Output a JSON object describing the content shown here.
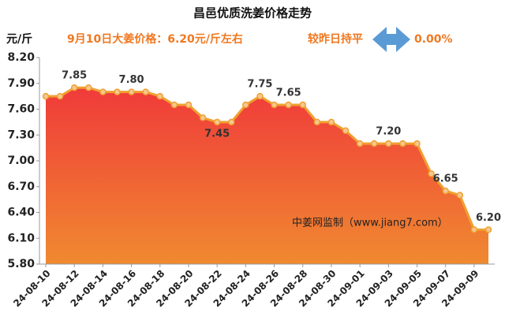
{
  "chart_data": {
    "type": "area",
    "title": "昌邑优质洗姜价格走势",
    "y_label": "元/斤",
    "subtitle": "9月10日大姜价格：6.20元/斤左右",
    "change_label": "较昨日持平",
    "change_value": "0.00%",
    "watermark": "中姜网监制（www.jiang7.com）",
    "categories": [
      "24-08-10",
      null,
      "24-08-12",
      null,
      "24-08-14",
      null,
      "24-08-16",
      null,
      "24-08-18",
      null,
      "24-08-20",
      null,
      "24-08-22",
      null,
      "24-08-24",
      null,
      "24-08-26",
      null,
      "24-08-28",
      null,
      "24-08-30",
      null,
      "24-09-01",
      null,
      "24-09-03",
      null,
      "24-09-05",
      null,
      "24-09-07",
      null,
      "24-09-09",
      null
    ],
    "values": [
      7.75,
      7.75,
      7.85,
      7.85,
      7.8,
      7.8,
      7.8,
      7.8,
      7.75,
      7.65,
      7.65,
      7.5,
      7.45,
      7.45,
      7.65,
      7.75,
      7.65,
      7.65,
      7.65,
      7.45,
      7.45,
      7.35,
      7.2,
      7.2,
      7.2,
      7.2,
      7.2,
      6.85,
      6.65,
      6.6,
      6.2,
      6.2
    ],
    "value_labels": [
      null,
      null,
      "7.85",
      null,
      null,
      null,
      "7.80",
      null,
      null,
      null,
      null,
      null,
      "7.45",
      null,
      null,
      "7.75",
      null,
      "7.65",
      null,
      null,
      null,
      null,
      null,
      null,
      "7.20",
      null,
      null,
      null,
      "6.65",
      null,
      null,
      "6.20"
    ],
    "color": "#f0a030",
    "fill_top": "#f03a3a",
    "fill_bottom": "#f08a30",
    "ylim": [
      5.8,
      8.2
    ],
    "yticks": [
      {
        "value": 5.8,
        "label": "5.80"
      },
      {
        "value": 6.1,
        "label": "6.10"
      },
      {
        "value": 6.4,
        "label": "6.40"
      },
      {
        "value": 6.7,
        "label": "6.70"
      },
      {
        "value": 7.0,
        "label": "7.00"
      },
      {
        "value": 7.3,
        "label": "7.30"
      },
      {
        "value": 7.6,
        "label": "7.60"
      },
      {
        "value": 7.9,
        "label": "7.90"
      },
      {
        "value": 8.2,
        "label": "8.20"
      }
    ],
    "grid": false
  }
}
